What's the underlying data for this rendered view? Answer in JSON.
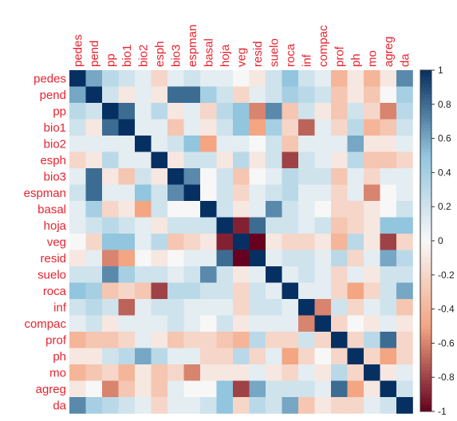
{
  "chart_data": {
    "type": "heatmap",
    "title": "",
    "xlabel": "",
    "ylabel": "",
    "variables": [
      "pedes",
      "pend",
      "pp",
      "bio1",
      "bio2",
      "esph",
      "bio3",
      "espman",
      "basal",
      "hoja",
      "veg",
      "resid",
      "suelo",
      "roca",
      "inf",
      "compac",
      "prof",
      "ph",
      "mo",
      "agreg",
      "da"
    ],
    "matrix": [
      [
        1,
        0.6,
        0.3,
        0.2,
        0.1,
        -0.2,
        0.1,
        0.2,
        0.1,
        0.1,
        0,
        -0.1,
        0.2,
        0.5,
        0.2,
        0.1,
        -0.4,
        -0.1,
        -0.4,
        -0.1,
        0.7
      ],
      [
        0.6,
        1,
        0.2,
        -0.1,
        0.1,
        -0.1,
        0.8,
        0.8,
        0.4,
        0.2,
        -0.2,
        0.1,
        0.2,
        0.4,
        0.3,
        0.2,
        -0.3,
        -0.1,
        -0.3,
        0,
        0.4
      ],
      [
        0.3,
        0.2,
        1,
        0.8,
        0.1,
        0.3,
        -0.1,
        0.1,
        -0.2,
        0.3,
        0.5,
        -0.6,
        0.7,
        -0.3,
        0.2,
        -0.1,
        -0.3,
        0.2,
        -0.2,
        -0.6,
        0.3
      ],
      [
        0.2,
        -0.1,
        0.8,
        1,
        0.1,
        0.1,
        -0.3,
        0.1,
        -0.1,
        0.2,
        0.5,
        -0.5,
        0.4,
        -0.2,
        -0.7,
        0.1,
        -0.2,
        0.3,
        -0.4,
        -0.3,
        0.2
      ],
      [
        0.1,
        0.1,
        0.1,
        0.1,
        1,
        0.1,
        0.2,
        0.5,
        -0.5,
        0.1,
        0.1,
        0,
        0.2,
        -0.3,
        0.1,
        0.1,
        0.1,
        0.6,
        -0.1,
        -0.1,
        0.1
      ],
      [
        -0.2,
        -0.1,
        0.3,
        0.1,
        0.1,
        1,
        -0.1,
        0.2,
        0.2,
        -0.1,
        0.3,
        -0.1,
        0.2,
        -0.8,
        0.2,
        0.1,
        -0.1,
        0.3,
        -0.3,
        -0.3,
        -0.2
      ],
      [
        0.1,
        0.8,
        -0.1,
        -0.3,
        0.2,
        -0.1,
        1,
        0.7,
        0,
        0.2,
        -0.3,
        0,
        0.1,
        0.3,
        0.2,
        0.2,
        -0.3,
        0.1,
        -0.2,
        0.1,
        0.1
      ],
      [
        0.2,
        0.8,
        0.1,
        0.1,
        0.5,
        0.2,
        0.7,
        1,
        0,
        0.2,
        -0.2,
        0.1,
        0.2,
        0.3,
        0.1,
        0.1,
        -0.2,
        0.1,
        -0.6,
        0,
        0.1
      ],
      [
        0.1,
        0.4,
        -0.2,
        -0.1,
        -0.5,
        0.2,
        0,
        0,
        1,
        0.2,
        -0.1,
        0.1,
        0.7,
        0.2,
        0.1,
        0,
        -0.2,
        -0.2,
        -0.1,
        0,
        0.2
      ],
      [
        0.1,
        0.2,
        0.3,
        0.2,
        0.1,
        -0.1,
        0.2,
        0.2,
        0.2,
        1,
        -0.9,
        0.8,
        0.2,
        0.2,
        0.1,
        0.2,
        -0.3,
        -0.2,
        -0.1,
        0.5,
        0.5
      ],
      [
        0,
        -0.2,
        0.5,
        0.5,
        0.1,
        0.3,
        -0.3,
        -0.2,
        -0.1,
        -0.9,
        1,
        -1,
        -0.1,
        -0.2,
        -0.2,
        -0.1,
        -0.4,
        0.3,
        -0.1,
        -0.8,
        -0.2
      ],
      [
        -0.1,
        0.1,
        -0.6,
        -0.5,
        0,
        -0.1,
        0,
        0.1,
        0.1,
        0.8,
        -1,
        1,
        0.1,
        0.2,
        0.2,
        0.1,
        0.3,
        -0.2,
        0.1,
        0.6,
        0.3
      ],
      [
        0.2,
        0.2,
        0.7,
        0.4,
        0.2,
        0.2,
        0.1,
        0.2,
        0.7,
        0.2,
        -0.1,
        0.1,
        1,
        0.1,
        0.2,
        0.1,
        -0.2,
        0.1,
        -0.1,
        0.2,
        0.2
      ],
      [
        0.5,
        0.4,
        -0.3,
        -0.2,
        -0.3,
        -0.8,
        0.3,
        0.3,
        0.2,
        0.2,
        -0.2,
        0.2,
        0.1,
        1,
        0.1,
        0.1,
        -0.2,
        -0.5,
        -0.2,
        0.2,
        0.6
      ],
      [
        0.2,
        0.3,
        0.2,
        -0.7,
        0.1,
        0.2,
        0.2,
        0.1,
        0.1,
        0.1,
        -0.2,
        0.2,
        0.2,
        0.1,
        1,
        -0.6,
        0.2,
        -0.2,
        0.1,
        0.2,
        -0.3
      ],
      [
        0.1,
        0.2,
        -0.1,
        0.1,
        0.1,
        0.1,
        0.2,
        0.1,
        0,
        0.2,
        -0.1,
        0.1,
        0.1,
        0.1,
        -0.6,
        1,
        -0.2,
        0,
        -0.1,
        0.1,
        -0.1
      ],
      [
        -0.4,
        -0.3,
        -0.3,
        -0.2,
        0.1,
        -0.1,
        -0.3,
        -0.2,
        -0.2,
        -0.3,
        -0.4,
        0.3,
        -0.2,
        -0.2,
        0.2,
        -0.2,
        1,
        -0.2,
        0.3,
        0.8,
        -0.2
      ],
      [
        -0.1,
        -0.1,
        0.2,
        0.3,
        0.6,
        0.3,
        0.1,
        0.1,
        -0.2,
        -0.2,
        0.3,
        -0.2,
        0.1,
        -0.5,
        -0.2,
        0,
        -0.2,
        1,
        -0.2,
        -0.5,
        -0.2
      ],
      [
        -0.4,
        -0.3,
        -0.2,
        -0.4,
        -0.1,
        -0.3,
        -0.2,
        -0.6,
        -0.1,
        -0.1,
        -0.1,
        0.1,
        -0.1,
        -0.2,
        0.1,
        -0.1,
        0.3,
        -0.2,
        1,
        -0.1,
        0.1
      ],
      [
        -0.1,
        0,
        -0.6,
        -0.3,
        -0.1,
        -0.3,
        0.1,
        0,
        0,
        0.5,
        -0.8,
        0.6,
        0.2,
        0.2,
        0.2,
        0.1,
        0.8,
        -0.5,
        -0.1,
        1,
        0.2
      ],
      [
        0.7,
        0.4,
        0.3,
        0.2,
        0.1,
        -0.2,
        0.1,
        0.1,
        0.2,
        0.5,
        -0.2,
        0.3,
        0.2,
        0.6,
        -0.3,
        -0.1,
        -0.2,
        -0.2,
        0.1,
        0.2,
        1
      ]
    ],
    "colorbar": {
      "range": [
        -1,
        1
      ],
      "ticks": [
        "1",
        "0.8",
        "0.6",
        "0.4",
        "0.2",
        "0",
        "-0.2",
        "-0.4",
        "-0.6",
        "-0.8",
        "-1"
      ],
      "colors": {
        "negative_end": "#67001f",
        "mid_neg": "#f4a582",
        "zero": "#f7f7f7",
        "mid_pos": "#92c5de",
        "positive_end": "#053061"
      }
    },
    "label_color": "#e8232e",
    "tick_label_color": "#222222"
  }
}
